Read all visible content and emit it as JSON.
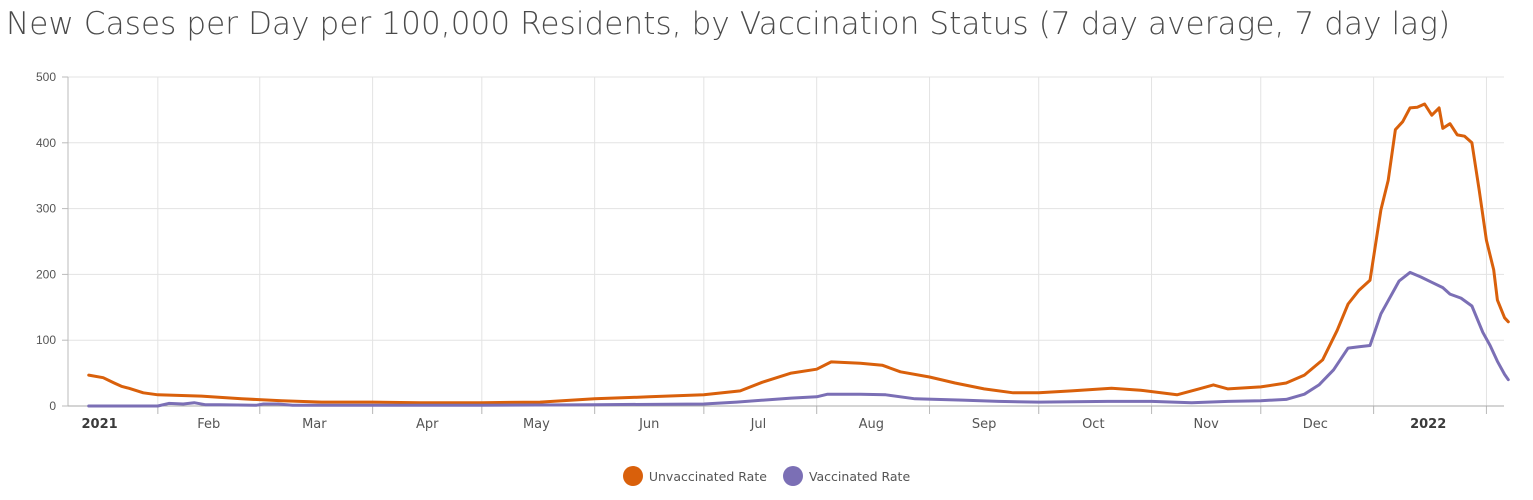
{
  "chart_data": {
    "type": "line",
    "title": "New Cases per Day per 100,000 Residents, by Vaccination Status (7 day average, 7 day lag)",
    "xlabel": "",
    "ylabel": "",
    "ylim": [
      0,
      500
    ],
    "yticks": [
      "0",
      "100",
      "200",
      "300",
      "400",
      "500"
    ],
    "xlim": [
      "2021-01-01",
      "2022-02-07"
    ],
    "xticks": [
      {
        "label": "2021",
        "date": "2021-01-16",
        "year": true
      },
      {
        "label": "Feb",
        "date": "2021-02-15",
        "year": false
      },
      {
        "label": "Mar",
        "date": "2021-03-16",
        "year": false
      },
      {
        "label": "Apr",
        "date": "2021-04-16",
        "year": false
      },
      {
        "label": "May",
        "date": "2021-05-16",
        "year": false
      },
      {
        "label": "Jun",
        "date": "2021-06-16",
        "year": false
      },
      {
        "label": "Jul",
        "date": "2021-07-16",
        "year": false
      },
      {
        "label": "Aug",
        "date": "2021-08-16",
        "year": false
      },
      {
        "label": "Sep",
        "date": "2021-09-16",
        "year": false
      },
      {
        "label": "Oct",
        "date": "2021-10-16",
        "year": false
      },
      {
        "label": "Nov",
        "date": "2021-11-16",
        "year": false
      },
      {
        "label": "Dec",
        "date": "2021-12-16",
        "year": false
      },
      {
        "label": "2022",
        "date": "2022-01-16",
        "year": true
      }
    ],
    "gridlines": [
      "2021-02-01",
      "2021-03-01",
      "2021-04-01",
      "2021-05-01",
      "2021-06-01",
      "2021-07-01",
      "2021-08-01",
      "2021-09-01",
      "2021-10-01",
      "2021-11-01",
      "2021-12-01",
      "2022-01-01",
      "2022-02-01"
    ],
    "grid": true,
    "legend_position": "bottom-center",
    "series": [
      {
        "name": "Unvaccinated Rate",
        "color": "#d9600b",
        "points": [
          [
            "2021-01-13",
            47
          ],
          [
            "2021-01-17",
            43
          ],
          [
            "2021-01-20",
            35
          ],
          [
            "2021-01-22",
            30
          ],
          [
            "2021-01-24",
            27
          ],
          [
            "2021-01-28",
            20
          ],
          [
            "2021-02-01",
            17
          ],
          [
            "2021-02-13",
            15
          ],
          [
            "2021-02-24",
            11
          ],
          [
            "2021-03-07",
            8
          ],
          [
            "2021-03-18",
            6
          ],
          [
            "2021-04-01",
            6
          ],
          [
            "2021-04-14",
            5
          ],
          [
            "2021-05-01",
            5
          ],
          [
            "2021-05-17",
            6
          ],
          [
            "2021-06-01",
            11
          ],
          [
            "2021-06-16",
            14
          ],
          [
            "2021-07-01",
            17
          ],
          [
            "2021-07-11",
            23
          ],
          [
            "2021-07-17",
            36
          ],
          [
            "2021-07-25",
            50
          ],
          [
            "2021-08-01",
            56
          ],
          [
            "2021-08-05",
            67
          ],
          [
            "2021-08-13",
            65
          ],
          [
            "2021-08-19",
            62
          ],
          [
            "2021-08-24",
            52
          ],
          [
            "2021-09-01",
            44
          ],
          [
            "2021-09-08",
            35
          ],
          [
            "2021-09-16",
            26
          ],
          [
            "2021-09-24",
            20
          ],
          [
            "2021-10-01",
            20
          ],
          [
            "2021-10-10",
            23
          ],
          [
            "2021-10-21",
            27
          ],
          [
            "2021-10-29",
            24
          ],
          [
            "2021-11-08",
            17
          ],
          [
            "2021-11-14",
            26
          ],
          [
            "2021-11-18",
            32
          ],
          [
            "2021-11-22",
            26
          ],
          [
            "2021-12-01",
            29
          ],
          [
            "2021-12-08",
            35
          ],
          [
            "2021-12-13",
            47
          ],
          [
            "2021-12-18",
            70
          ],
          [
            "2021-12-22",
            115
          ],
          [
            "2021-12-25",
            155
          ],
          [
            "2021-12-28",
            176
          ],
          [
            "2021-12-31",
            191
          ],
          [
            "2022-01-03",
            298
          ],
          [
            "2022-01-05",
            343
          ],
          [
            "2022-01-07",
            420
          ],
          [
            "2022-01-09",
            432
          ],
          [
            "2022-01-11",
            453
          ],
          [
            "2022-01-13",
            454
          ],
          [
            "2022-01-15",
            459
          ],
          [
            "2022-01-17",
            442
          ],
          [
            "2022-01-19",
            453
          ],
          [
            "2022-01-20",
            422
          ],
          [
            "2022-01-22",
            429
          ],
          [
            "2022-01-24",
            412
          ],
          [
            "2022-01-26",
            410
          ],
          [
            "2022-01-28",
            400
          ],
          [
            "2022-01-30",
            328
          ],
          [
            "2022-02-01",
            252
          ],
          [
            "2022-02-03",
            207
          ],
          [
            "2022-02-04",
            161
          ],
          [
            "2022-02-06",
            134
          ],
          [
            "2022-02-07",
            128
          ]
        ]
      },
      {
        "name": "Vaccinated Rate",
        "color": "#7b6fb5",
        "points": [
          [
            "2021-01-13",
            0
          ],
          [
            "2021-02-01",
            0
          ],
          [
            "2021-02-04",
            4
          ],
          [
            "2021-02-08",
            3
          ],
          [
            "2021-02-11",
            5
          ],
          [
            "2021-02-14",
            2
          ],
          [
            "2021-02-18",
            2
          ],
          [
            "2021-02-28",
            1
          ],
          [
            "2021-03-02",
            3
          ],
          [
            "2021-03-06",
            3
          ],
          [
            "2021-03-10",
            1
          ],
          [
            "2021-04-01",
            1
          ],
          [
            "2021-05-01",
            1
          ],
          [
            "2021-06-01",
            2
          ],
          [
            "2021-07-01",
            3
          ],
          [
            "2021-07-10",
            6
          ],
          [
            "2021-07-25",
            12
          ],
          [
            "2021-08-01",
            14
          ],
          [
            "2021-08-04",
            18
          ],
          [
            "2021-08-13",
            18
          ],
          [
            "2021-08-20",
            17
          ],
          [
            "2021-08-28",
            11
          ],
          [
            "2021-09-10",
            9
          ],
          [
            "2021-09-20",
            7
          ],
          [
            "2021-10-01",
            6
          ],
          [
            "2021-10-20",
            7
          ],
          [
            "2021-11-01",
            7
          ],
          [
            "2021-11-12",
            5
          ],
          [
            "2021-11-22",
            7
          ],
          [
            "2021-12-01",
            8
          ],
          [
            "2021-12-08",
            10
          ],
          [
            "2021-12-13",
            18
          ],
          [
            "2021-12-17",
            32
          ],
          [
            "2021-12-21",
            55
          ],
          [
            "2021-12-25",
            88
          ],
          [
            "2021-12-28",
            90
          ],
          [
            "2021-12-31",
            92
          ],
          [
            "2022-01-03",
            140
          ],
          [
            "2022-01-05",
            160
          ],
          [
            "2022-01-08",
            190
          ],
          [
            "2022-01-11",
            203
          ],
          [
            "2022-01-14",
            196
          ],
          [
            "2022-01-17",
            188
          ],
          [
            "2022-01-20",
            180
          ],
          [
            "2022-01-22",
            170
          ],
          [
            "2022-01-25",
            164
          ],
          [
            "2022-01-28",
            152
          ],
          [
            "2022-01-31",
            112
          ],
          [
            "2022-02-02",
            92
          ],
          [
            "2022-02-04",
            68
          ],
          [
            "2022-02-06",
            48
          ],
          [
            "2022-02-07",
            40
          ]
        ]
      }
    ]
  }
}
